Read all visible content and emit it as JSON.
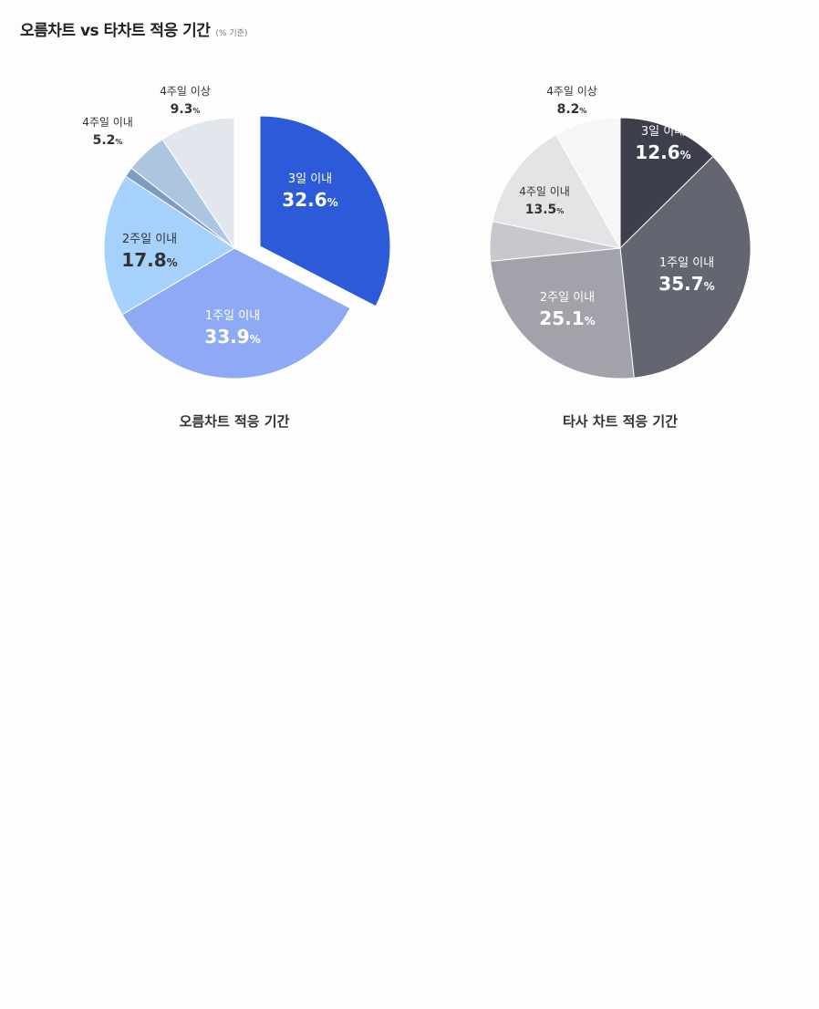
{
  "header": {
    "title": "오름차트 vs 타차트 적응 기간",
    "note": "(% 기준)"
  },
  "colors": {
    "accent": "#2c5ad9",
    "dark": "#3d3f4c"
  },
  "chart_data": [
    {
      "type": "pie",
      "title": "오름차트 적응 기간",
      "unit": "%",
      "slices": [
        {
          "label": "3일 이내",
          "value": 32.6,
          "color": "#2c5ad9",
          "exploded": true,
          "label_color": "#ffffff"
        },
        {
          "label": "1주일 이내",
          "value": 33.9,
          "color": "#8faaf4",
          "label_color": "#ffffff"
        },
        {
          "label": "2주일 이내",
          "value": 17.8,
          "color": "#a6d1fa",
          "label_color": "#333333"
        },
        {
          "label": "",
          "value": 1.2,
          "color": "#7d9cbf"
        },
        {
          "label": "4주일 이내",
          "value": 5.2,
          "color": "#adc6e0",
          "label_color": "#333333"
        },
        {
          "label": "4주일 이상",
          "value": 9.3,
          "color": "#e2e7ee",
          "label_color": "#333333"
        }
      ]
    },
    {
      "type": "pie",
      "title": "타사 차트 적응 기간",
      "unit": "%",
      "slices": [
        {
          "label": "3일 이내",
          "value": 12.6,
          "color": "#3d3f4c",
          "exploded": true,
          "label_color": "#ffffff"
        },
        {
          "label": "1주일 이내",
          "value": 35.7,
          "color": "#636670",
          "label_color": "#ffffff"
        },
        {
          "label": "2주일 이내",
          "value": 25.1,
          "color": "#a1a2aa",
          "label_color": "#ffffff"
        },
        {
          "label": "",
          "value": 4.9,
          "color": "#c6c8ce"
        },
        {
          "label": "4주일 이내",
          "value": 13.5,
          "color": "#e4e4e7",
          "label_color": "#333333"
        },
        {
          "label": "4주일 이상",
          "value": 8.2,
          "color": "#f6f6f8",
          "label_color": "#333333"
        }
      ]
    }
  ]
}
